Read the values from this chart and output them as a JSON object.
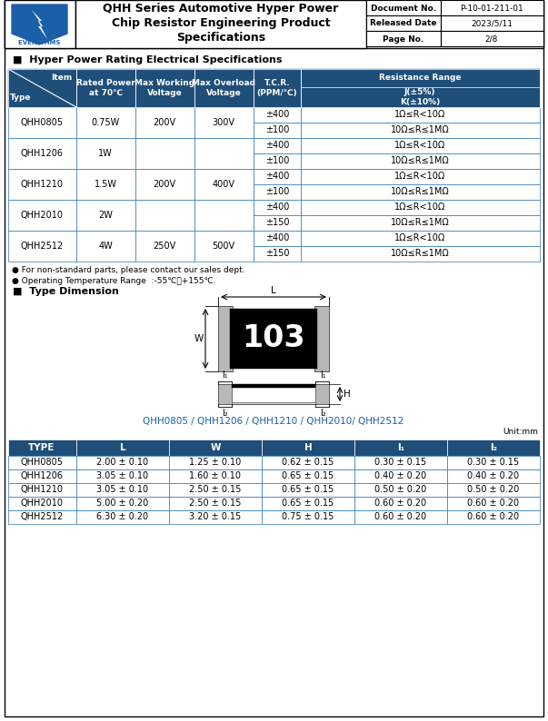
{
  "header": {
    "title_line1": "QHH Series Automotive Hyper Power",
    "title_line2": "Chip Resistor Engineering Product",
    "title_line3": "Specifications",
    "doc_no_label": "Document No.",
    "doc_no_value": "P-10-01-211-01",
    "released_label": "Released Date",
    "released_value": "2023/5/11",
    "page_label": "Page No.",
    "page_value": "2/8"
  },
  "section1_title": "■  Hyper Power Rating Electrical Specifications",
  "table1_header_row2_sub": "J(±5%)\nK(±10%)",
  "table1_type_col": "Type",
  "note1": "● For non-standard parts, please contact our sales dept.",
  "note2": "● Operating Temperature Range  :-55℃～+155℃.",
  "section2_title": "■  Type Dimension",
  "dim_label_caption": "QHH0805 / QHH1206 / QHH1210 / QHH2010/ QHH2512",
  "table2_unit": "Unit:mm",
  "table2_header": [
    "TYPE",
    "L",
    "W",
    "H",
    "l₁",
    "l₂"
  ],
  "table2_data": [
    [
      "QHH0805",
      "2.00 ± 0.10",
      "1.25 ± 0.10",
      "0.62 ± 0.15",
      "0.30 ± 0.15",
      "0.30 ± 0.15"
    ],
    [
      "QHH1206",
      "3.05 ± 0.10",
      "1.60 ± 0.10",
      "0.65 ± 0.15",
      "0.40 ± 0.20",
      "0.40 ± 0.20"
    ],
    [
      "QHH1210",
      "3.05 ± 0.10",
      "2.50 ± 0.15",
      "0.65 ± 0.15",
      "0.50 ± 0.20",
      "0.50 ± 0.20"
    ],
    [
      "QHH2010",
      "5.00 ± 0.20",
      "2.50 ± 0.15",
      "0.65 ± 0.15",
      "0.60 ± 0.20",
      "0.60 ± 0.20"
    ],
    [
      "QHH2512",
      "6.30 ± 0.20",
      "3.20 ± 0.15",
      "0.75 ± 0.15",
      "0.60 ± 0.20",
      "0.60 ± 0.20"
    ]
  ],
  "groups": [
    [
      "QHH0805",
      "0.75W",
      "200V",
      "300V",
      [
        "±400",
        "±100"
      ]
    ],
    [
      "QHH1206",
      "1W",
      "",
      "",
      [
        "±400",
        "±100"
      ]
    ],
    [
      "QHH1210",
      "1.5W",
      "200V",
      "400V",
      [
        "±400",
        "±100"
      ]
    ],
    [
      "QHH2010",
      "2W",
      "",
      "",
      [
        "±400",
        "±150"
      ]
    ],
    [
      "QHH2512",
      "4W",
      "250V",
      "500V",
      [
        "±400",
        "±150"
      ]
    ]
  ],
  "res_vals": [
    [
      "1Ω≤R<10Ω",
      "10Ω≤R≤1MΩ"
    ],
    [
      "1Ω≤R<10Ω",
      "10Ω≤R≤1MΩ"
    ],
    [
      "1Ω≤R<10Ω",
      "10Ω≤R≤1MΩ"
    ],
    [
      "1Ω≤R<10Ω",
      "10Ω≤R≤1MΩ"
    ],
    [
      "1Ω≤R<10Ω",
      "10Ω≤R≤1MΩ"
    ]
  ],
  "header_bg": "#1f4e79",
  "header_fg": "#ffffff",
  "table_border": "#2e75b6",
  "page_bg": "#ffffff"
}
